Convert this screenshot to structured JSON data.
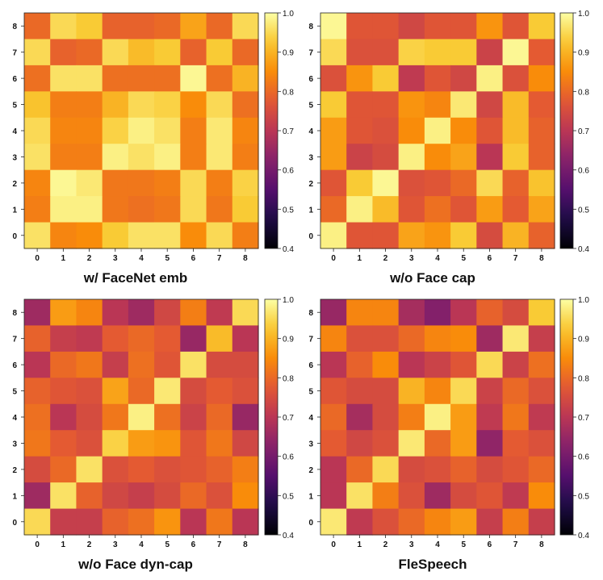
{
  "chart_data": [
    {
      "type": "heatmap",
      "title": "w/ FaceNet emb",
      "x_ticks": [
        "0",
        "1",
        "2",
        "3",
        "4",
        "5",
        "6",
        "7",
        "8"
      ],
      "y_ticks": [
        "0",
        "1",
        "2",
        "3",
        "4",
        "5",
        "6",
        "7",
        "8"
      ],
      "colorbar": {
        "min": 0.4,
        "max": 1.0,
        "ticks": [
          "0.4",
          "0.5",
          "0.6",
          "0.7",
          "0.8",
          "0.9",
          "1.0"
        ],
        "colormap": "inferno"
      },
      "matrix": [
        [
          0.8,
          0.95,
          0.93,
          0.79,
          0.79,
          0.8,
          0.88,
          0.8,
          0.95
        ],
        [
          0.95,
          0.79,
          0.8,
          0.95,
          0.91,
          0.93,
          0.79,
          0.93,
          0.8
        ],
        [
          0.81,
          0.96,
          0.96,
          0.81,
          0.81,
          0.81,
          0.99,
          0.81,
          0.9
        ],
        [
          0.92,
          0.83,
          0.83,
          0.9,
          0.95,
          0.94,
          0.85,
          0.95,
          0.81
        ],
        [
          0.95,
          0.84,
          0.84,
          0.94,
          0.98,
          0.96,
          0.83,
          0.97,
          0.84
        ],
        [
          0.96,
          0.83,
          0.83,
          0.98,
          0.96,
          0.98,
          0.83,
          0.97,
          0.83
        ],
        [
          0.84,
          0.99,
          0.97,
          0.82,
          0.82,
          0.83,
          0.95,
          0.83,
          0.94
        ],
        [
          0.83,
          0.98,
          0.98,
          0.82,
          0.81,
          0.82,
          0.95,
          0.82,
          0.93
        ],
        [
          0.96,
          0.84,
          0.85,
          0.93,
          0.96,
          0.96,
          0.85,
          0.95,
          0.83
        ]
      ]
    },
    {
      "type": "heatmap",
      "title": "w/o Face cap",
      "x_ticks": [
        "0",
        "1",
        "2",
        "3",
        "4",
        "5",
        "6",
        "7",
        "8"
      ],
      "y_ticks": [
        "0",
        "1",
        "2",
        "3",
        "4",
        "5",
        "6",
        "7",
        "8"
      ],
      "colorbar": {
        "min": 0.4,
        "max": 1.0,
        "ticks": [
          "0.4",
          "0.5",
          "0.6",
          "0.7",
          "0.8",
          "0.9",
          "1.0"
        ],
        "colormap": "inferno"
      },
      "matrix": [
        [
          0.99,
          0.77,
          0.77,
          0.74,
          0.77,
          0.77,
          0.86,
          0.77,
          0.93
        ],
        [
          0.95,
          0.76,
          0.76,
          0.94,
          0.93,
          0.93,
          0.73,
          0.99,
          0.78
        ],
        [
          0.76,
          0.86,
          0.93,
          0.71,
          0.77,
          0.74,
          0.98,
          0.76,
          0.85
        ],
        [
          0.93,
          0.77,
          0.77,
          0.86,
          0.84,
          0.97,
          0.74,
          0.91,
          0.78
        ],
        [
          0.87,
          0.77,
          0.76,
          0.85,
          0.98,
          0.85,
          0.77,
          0.91,
          0.79
        ],
        [
          0.87,
          0.73,
          0.75,
          0.98,
          0.85,
          0.88,
          0.7,
          0.93,
          0.79
        ],
        [
          0.77,
          0.93,
          0.99,
          0.76,
          0.77,
          0.8,
          0.95,
          0.79,
          0.92
        ],
        [
          0.8,
          0.98,
          0.91,
          0.77,
          0.81,
          0.77,
          0.87,
          0.78,
          0.88
        ],
        [
          0.98,
          0.77,
          0.77,
          0.88,
          0.86,
          0.93,
          0.75,
          0.9,
          0.79
        ]
      ]
    },
    {
      "type": "heatmap",
      "title": "w/o Face dyn-cap",
      "x_ticks": [
        "0",
        "1",
        "2",
        "3",
        "4",
        "5",
        "6",
        "7",
        "8"
      ],
      "y_ticks": [
        "0",
        "1",
        "2",
        "3",
        "4",
        "5",
        "6",
        "7",
        "8"
      ],
      "colorbar": {
        "min": 0.4,
        "max": 1.0,
        "ticks": [
          "0.4",
          "0.5",
          "0.6",
          "0.7",
          "0.8",
          "0.9",
          "1.0"
        ],
        "colormap": "inferno"
      },
      "matrix": [
        [
          0.66,
          0.87,
          0.84,
          0.7,
          0.66,
          0.74,
          0.83,
          0.71,
          0.95
        ],
        [
          0.79,
          0.72,
          0.71,
          0.78,
          0.8,
          0.78,
          0.65,
          0.91,
          0.7
        ],
        [
          0.7,
          0.8,
          0.82,
          0.72,
          0.81,
          0.77,
          0.96,
          0.75,
          0.75
        ],
        [
          0.79,
          0.77,
          0.76,
          0.88,
          0.8,
          0.97,
          0.75,
          0.78,
          0.76
        ],
        [
          0.81,
          0.7,
          0.75,
          0.82,
          0.98,
          0.81,
          0.73,
          0.8,
          0.65
        ],
        [
          0.82,
          0.78,
          0.76,
          0.94,
          0.87,
          0.86,
          0.77,
          0.82,
          0.74
        ],
        [
          0.75,
          0.8,
          0.96,
          0.76,
          0.78,
          0.76,
          0.77,
          0.79,
          0.83
        ],
        [
          0.66,
          0.96,
          0.79,
          0.74,
          0.72,
          0.75,
          0.8,
          0.76,
          0.85
        ],
        [
          0.95,
          0.72,
          0.72,
          0.79,
          0.81,
          0.86,
          0.7,
          0.82,
          0.7
        ]
      ]
    },
    {
      "type": "heatmap",
      "title": "FleSpeech",
      "x_ticks": [
        "0",
        "1",
        "2",
        "3",
        "4",
        "5",
        "6",
        "7",
        "8"
      ],
      "y_ticks": [
        "0",
        "1",
        "2",
        "3",
        "4",
        "5",
        "6",
        "7",
        "8"
      ],
      "colorbar": {
        "min": 0.4,
        "max": 1.0,
        "ticks": [
          "0.4",
          "0.5",
          "0.6",
          "0.7",
          "0.8",
          "0.9",
          "1.0"
        ],
        "colormap": "inferno"
      },
      "matrix": [
        [
          0.65,
          0.84,
          0.84,
          0.67,
          0.62,
          0.7,
          0.79,
          0.75,
          0.93
        ],
        [
          0.84,
          0.76,
          0.76,
          0.8,
          0.84,
          0.85,
          0.66,
          0.97,
          0.72
        ],
        [
          0.7,
          0.79,
          0.85,
          0.7,
          0.73,
          0.77,
          0.95,
          0.73,
          0.81
        ],
        [
          0.77,
          0.75,
          0.75,
          0.9,
          0.84,
          0.95,
          0.73,
          0.8,
          0.76
        ],
        [
          0.8,
          0.67,
          0.75,
          0.83,
          0.98,
          0.87,
          0.71,
          0.82,
          0.71
        ],
        [
          0.78,
          0.74,
          0.76,
          0.97,
          0.8,
          0.87,
          0.64,
          0.78,
          0.76
        ],
        [
          0.7,
          0.8,
          0.95,
          0.75,
          0.76,
          0.79,
          0.75,
          0.77,
          0.8
        ],
        [
          0.7,
          0.96,
          0.83,
          0.76,
          0.66,
          0.75,
          0.77,
          0.71,
          0.85
        ],
        [
          0.97,
          0.71,
          0.76,
          0.8,
          0.84,
          0.87,
          0.72,
          0.83,
          0.72
        ]
      ]
    }
  ]
}
